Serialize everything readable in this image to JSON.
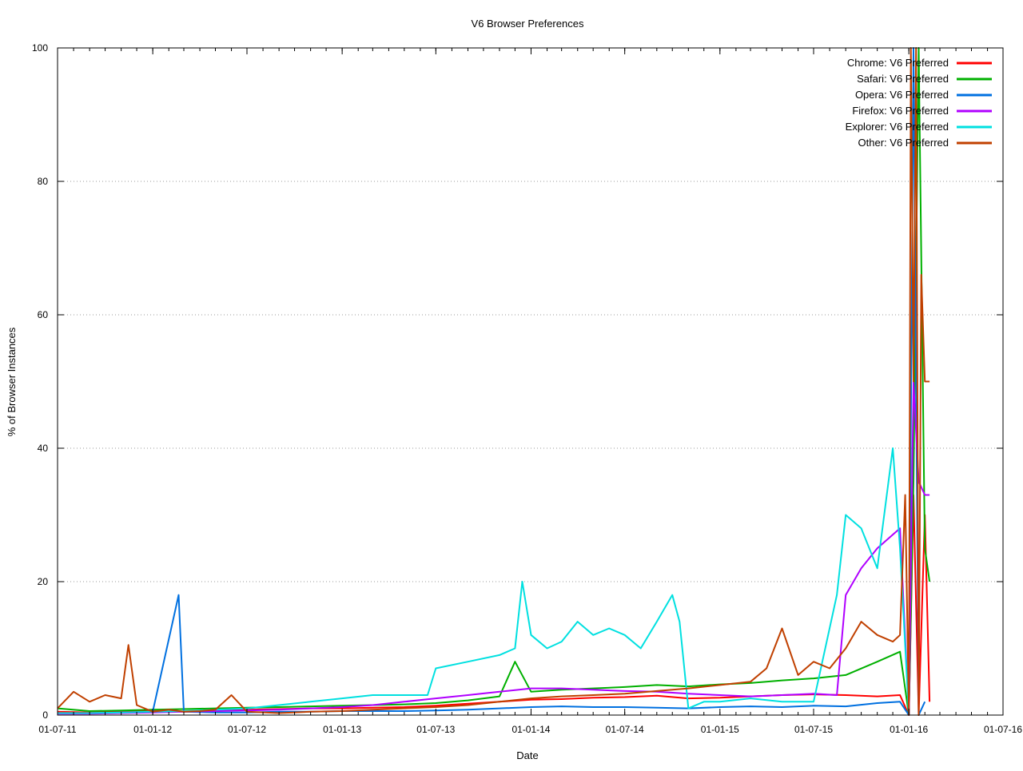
{
  "chart_data": {
    "type": "line",
    "title": "V6 Browser Preferences",
    "xlabel": "Date",
    "ylabel": "% of Browser Instances",
    "xlim": [
      "01-07-11",
      "01-07-16"
    ],
    "ylim": [
      0,
      100
    ],
    "x_ticks": [
      "01-07-11",
      "01-01-12",
      "01-07-12",
      "01-01-13",
      "01-07-13",
      "01-01-14",
      "01-07-14",
      "01-01-15",
      "01-07-15",
      "01-01-16",
      "01-07-16"
    ],
    "y_ticks": [
      "0",
      "20",
      "40",
      "60",
      "80",
      "100"
    ],
    "grid": "horizontal dotted",
    "legend_position": "top-right",
    "series": [
      {
        "name": "Chrome: V6 Preferred",
        "color": "#ff0000",
        "x": [
          "01-07-11",
          "01-09-11",
          "01-11-11",
          "01-01-12",
          "01-03-12",
          "01-05-12",
          "01-07-12",
          "01-09-12",
          "01-11-12",
          "01-01-13",
          "01-03-13",
          "01-05-13",
          "01-07-13",
          "01-09-13",
          "01-11-13",
          "01-01-14",
          "01-03-14",
          "01-05-14",
          "01-07-14",
          "01-09-14",
          "01-11-14",
          "01-01-15",
          "01-03-15",
          "01-05-15",
          "01-07-15",
          "01-09-15",
          "01-11-15",
          "15-12-15",
          "01-01-16",
          "10-01-16",
          "20-01-16",
          "01-02-16",
          "10-02-16"
        ],
        "values": [
          0.5,
          0.4,
          0.5,
          0.6,
          0.5,
          0.6,
          0.8,
          0.9,
          1.0,
          1.0,
          1.1,
          1.2,
          1.4,
          1.7,
          2.0,
          2.3,
          2.4,
          2.6,
          2.7,
          2.9,
          2.5,
          2.6,
          2.8,
          3.0,
          3.1,
          3.0,
          2.8,
          3.0,
          0.0,
          33.0,
          0.0,
          30.0,
          2.0
        ]
      },
      {
        "name": "Safari: V6 Preferred",
        "color": "#00b000",
        "x": [
          "01-07-11",
          "01-09-11",
          "01-11-11",
          "01-01-12",
          "01-03-12",
          "01-05-12",
          "01-07-12",
          "01-09-12",
          "01-11-12",
          "01-01-13",
          "01-03-13",
          "01-05-13",
          "01-07-13",
          "01-09-13",
          "01-11-13",
          "01-12-13",
          "01-01-14",
          "01-03-14",
          "01-05-14",
          "01-07-14",
          "01-09-14",
          "01-11-14",
          "01-01-15",
          "01-03-15",
          "01-05-15",
          "01-07-15",
          "01-09-15",
          "01-11-15",
          "15-12-15",
          "01-01-16",
          "10-01-16",
          "20-01-16",
          "01-02-16",
          "10-02-16"
        ],
        "values": [
          1.0,
          0.6,
          0.7,
          0.8,
          0.9,
          1.0,
          1.1,
          1.2,
          1.3,
          1.4,
          1.5,
          1.6,
          1.8,
          2.2,
          2.8,
          8.0,
          3.5,
          3.8,
          4.0,
          4.2,
          4.5,
          4.3,
          4.6,
          4.8,
          5.2,
          5.5,
          6.0,
          8.0,
          9.5,
          0.0,
          35.0,
          100.0,
          25.0,
          20.0
        ]
      },
      {
        "name": "Opera: V6 Preferred",
        "color": "#0070e0",
        "x": [
          "01-07-11",
          "01-09-11",
          "01-11-11",
          "01-01-12",
          "20-02-12",
          "01-03-12",
          "01-05-12",
          "01-07-12",
          "01-09-12",
          "01-11-12",
          "01-01-13",
          "01-03-13",
          "01-05-13",
          "01-07-13",
          "01-09-13",
          "01-11-13",
          "01-01-14",
          "01-03-14",
          "01-05-14",
          "01-07-14",
          "01-09-14",
          "01-11-14",
          "01-01-15",
          "01-03-15",
          "01-05-15",
          "01-07-15",
          "01-09-15",
          "01-11-15",
          "15-12-15",
          "01-01-16",
          "10-01-16",
          "20-01-16",
          "01-02-16"
        ],
        "values": [
          0.3,
          0.3,
          0.4,
          0.5,
          18.0,
          0.5,
          0.4,
          0.4,
          0.5,
          0.5,
          0.6,
          0.6,
          0.6,
          0.7,
          0.8,
          1.0,
          1.2,
          1.3,
          1.2,
          1.2,
          1.1,
          1.0,
          1.2,
          1.3,
          1.2,
          1.4,
          1.3,
          1.8,
          2.0,
          0.0,
          100.0,
          0.0,
          2.0
        ]
      },
      {
        "name": "Firefox: V6 Preferred",
        "color": "#b000ff",
        "x": [
          "01-07-11",
          "01-09-11",
          "01-11-11",
          "01-01-12",
          "01-03-12",
          "01-05-12",
          "01-07-12",
          "01-09-12",
          "01-11-12",
          "01-01-13",
          "01-03-13",
          "01-05-13",
          "01-07-13",
          "01-09-13",
          "01-11-13",
          "01-01-14",
          "01-03-14",
          "01-05-14",
          "01-07-14",
          "01-09-14",
          "01-11-14",
          "01-01-15",
          "01-03-15",
          "01-05-15",
          "01-07-15",
          "15-08-15",
          "01-09-15",
          "01-10-15",
          "01-11-15",
          "15-12-15",
          "01-01-16",
          "10-01-16",
          "20-01-16",
          "01-02-16",
          "10-02-16"
        ],
        "values": [
          0.2,
          0.2,
          0.3,
          0.4,
          0.5,
          0.6,
          0.7,
          0.8,
          1.0,
          1.2,
          1.5,
          2.0,
          2.5,
          3.0,
          3.5,
          4.0,
          4.0,
          3.8,
          3.6,
          3.5,
          3.2,
          3.0,
          2.8,
          3.0,
          3.2,
          3.0,
          18.0,
          22.0,
          25.0,
          28.0,
          0.0,
          50.0,
          35.0,
          33.0,
          33.0
        ]
      },
      {
        "name": "Explorer: V6 Preferred",
        "color": "#00e0e0",
        "x": [
          "01-07-11",
          "01-09-11",
          "01-11-11",
          "01-01-12",
          "01-03-12",
          "01-05-12",
          "01-07-12",
          "01-09-12",
          "01-11-12",
          "01-01-13",
          "01-03-13",
          "01-05-13",
          "15-06-13",
          "01-07-13",
          "01-09-13",
          "01-11-13",
          "01-12-13",
          "15-12-13",
          "01-01-14",
          "01-02-14",
          "01-03-14",
          "01-04-14",
          "01-05-14",
          "01-06-14",
          "01-07-14",
          "01-08-14",
          "01-09-14",
          "01-10-14",
          "15-10-14",
          "01-11-14",
          "01-12-14",
          "01-01-15",
          "01-03-15",
          "01-05-15",
          "01-07-15",
          "15-08-15",
          "01-09-15",
          "01-10-15",
          "01-11-15",
          "01-12-15",
          "15-12-15",
          "01-01-16"
        ],
        "values": [
          0.3,
          0.3,
          0.4,
          0.5,
          0.6,
          0.8,
          1.0,
          1.5,
          2.0,
          2.5,
          3.0,
          3.0,
          3.0,
          7.0,
          8.0,
          9.0,
          10.0,
          20.0,
          12.0,
          10.0,
          11.0,
          14.0,
          12.0,
          13.0,
          12.0,
          10.0,
          14.0,
          18.0,
          14.0,
          1.0,
          2.0,
          2.0,
          2.5,
          2.0,
          2.0,
          18.0,
          30.0,
          28.0,
          22.0,
          40.0,
          25.0,
          0.0
        ]
      },
      {
        "name": "Other: V6 Preferred",
        "color": "#c04000",
        "x": [
          "01-07-11",
          "01-08-11",
          "01-09-11",
          "01-10-11",
          "01-11-11",
          "15-11-11",
          "01-12-11",
          "01-01-12",
          "01-02-12",
          "01-03-12",
          "01-04-12",
          "01-05-12",
          "01-06-12",
          "01-07-12",
          "01-09-12",
          "01-11-12",
          "01-01-13",
          "01-03-13",
          "01-05-13",
          "01-07-13",
          "01-09-13",
          "01-11-13",
          "01-01-14",
          "01-03-14",
          "01-05-14",
          "01-07-14",
          "01-09-14",
          "01-11-14",
          "01-01-15",
          "01-03-15",
          "01-04-15",
          "01-05-15",
          "01-06-15",
          "01-07-15",
          "01-08-15",
          "01-09-15",
          "01-10-15",
          "01-11-15",
          "01-12-15",
          "15-12-15",
          "25-12-15",
          "01-01-16",
          "05-01-16",
          "10-01-16",
          "15-01-16",
          "20-01-16",
          "25-01-16",
          "01-02-16",
          "10-02-16"
        ],
        "values": [
          1.0,
          3.5,
          2.0,
          3.0,
          2.5,
          10.5,
          1.5,
          0.5,
          0.8,
          0.5,
          0.6,
          0.8,
          3.0,
          0.5,
          0.3,
          0.5,
          0.6,
          0.8,
          1.0,
          1.2,
          1.5,
          2.0,
          2.5,
          2.8,
          3.0,
          3.2,
          3.6,
          4.0,
          4.5,
          5.0,
          7.0,
          13.0,
          6.0,
          8.0,
          7.0,
          10.0,
          14.0,
          12.0,
          11.0,
          12.0,
          33.0,
          0.0,
          100.0,
          50.0,
          100.0,
          0.0,
          66.0,
          50.0,
          50.0
        ]
      }
    ]
  }
}
